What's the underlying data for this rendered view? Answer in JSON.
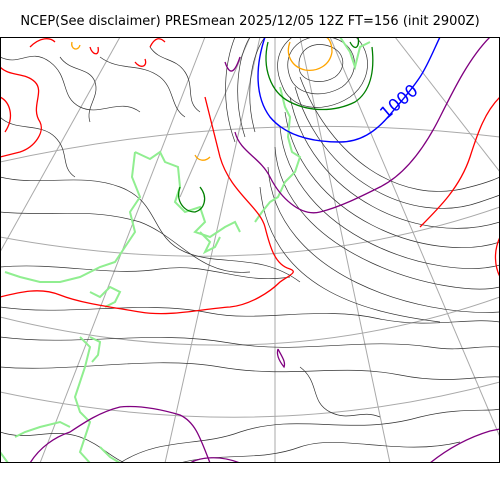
{
  "title": "NCEP(See disclaimer) PRESmean 2025/12/05 12Z FT=156 (init 2900Z)",
  "isobar_label": "1000",
  "colors": {
    "grid": "#a9a9a9",
    "isobar_thin": "#333333",
    "isobar_blue": "#0000ff",
    "isobar_green": "#008000",
    "isobar_orange": "#ffa500",
    "isobar_red": "#ff0000",
    "isobar_purple": "#800080",
    "coastline": "#90ee90",
    "frame": "#000000"
  }
}
